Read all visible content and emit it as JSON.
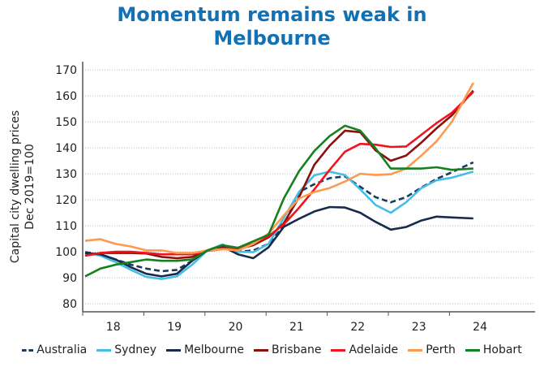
{
  "chart_data": {
    "type": "line",
    "title": [
      "Momentum remains weak in",
      "Melbourne"
    ],
    "ylabel": [
      "Capital city dwelling prices",
      "Dec 2019=100"
    ],
    "xlabel": "",
    "ylim": [
      77,
      172
    ],
    "yticks": [
      80,
      90,
      100,
      110,
      120,
      130,
      140,
      150,
      160,
      170
    ],
    "xlim": [
      2018,
      2024.75
    ],
    "xtick_labels": [
      "18",
      "19",
      "20",
      "21",
      "22",
      "23",
      "24"
    ],
    "grid": "horizontal dotted",
    "legend_position": "bottom",
    "x": [
      2018.0,
      2018.25,
      2018.5,
      2018.75,
      2019.0,
      2019.25,
      2019.5,
      2019.75,
      2020.0,
      2020.25,
      2020.5,
      2020.75,
      2021.0,
      2021.25,
      2021.5,
      2021.75,
      2022.0,
      2022.25,
      2022.5,
      2022.75,
      2023.0,
      2023.25,
      2023.5,
      2023.75,
      2024.0,
      2024.35
    ],
    "series": [
      {
        "name": "Australia",
        "color": "#1b3a5c",
        "dashed": true,
        "values": [
          99.8,
          99,
          97,
          95,
          93.5,
          92.5,
          93,
          96.5,
          100.5,
          102,
          100,
          100.5,
          103,
          110,
          123,
          126,
          128.3,
          129,
          125,
          121,
          119,
          121,
          124.7,
          128,
          130.6,
          134.4
        ]
      },
      {
        "name": "Sydney",
        "color": "#45bde6",
        "values": [
          99.5,
          98.5,
          96,
          93,
          90.3,
          89.5,
          90.5,
          95,
          100.5,
          102.8,
          100,
          99.8,
          103,
          113,
          123,
          129.4,
          130.8,
          129.5,
          124,
          118,
          115,
          119,
          124.5,
          127.5,
          128.5,
          130.8
        ]
      },
      {
        "name": "Melbourne",
        "color": "#172b4d",
        "values": [
          99.5,
          99,
          97,
          94,
          91.5,
          90.5,
          91.5,
          96.5,
          100.5,
          102,
          99,
          97.5,
          101.7,
          109.6,
          112.7,
          115.5,
          117.2,
          117,
          115,
          111.5,
          108.5,
          109.5,
          112,
          113.5,
          113.2,
          112.8
        ]
      },
      {
        "name": "Brisbane",
        "color": "#8b1010",
        "values": [
          98.5,
          99.5,
          99.5,
          99.5,
          99.3,
          98,
          97.5,
          98,
          100.5,
          101.5,
          101,
          102.5,
          105.5,
          111,
          121,
          133.5,
          140.8,
          146.6,
          146,
          139,
          135,
          137,
          142,
          147.5,
          152.5,
          162
        ]
      },
      {
        "name": "Adelaide",
        "color": "#f0141e",
        "values": [
          98.5,
          99.5,
          100,
          100,
          99.5,
          99,
          99,
          99,
          100.3,
          101,
          101.5,
          103,
          106,
          110.5,
          116.9,
          124,
          131.5,
          138.5,
          141.5,
          141.2,
          140.3,
          140.5,
          145,
          149.5,
          153.5,
          161.5
        ]
      },
      {
        "name": "Perth",
        "color": "#fb9a50",
        "values": [
          104.2,
          104.8,
          103,
          102,
          100.5,
          100.5,
          99.5,
          99.5,
          100.5,
          101,
          100.5,
          103,
          107,
          114,
          120.5,
          123,
          124.5,
          127,
          130,
          129.5,
          129.8,
          132,
          137,
          142.5,
          150,
          165
        ]
      },
      {
        "name": "Hobart",
        "color": "#14801e",
        "values": [
          90.5,
          93.5,
          95,
          96,
          97,
          96.5,
          96.5,
          97,
          100.5,
          102.5,
          101.5,
          104,
          106.5,
          120.5,
          131,
          138.8,
          144.5,
          148.5,
          146.6,
          139.8,
          132,
          132,
          132,
          132.5,
          131.5,
          132
        ]
      }
    ]
  }
}
